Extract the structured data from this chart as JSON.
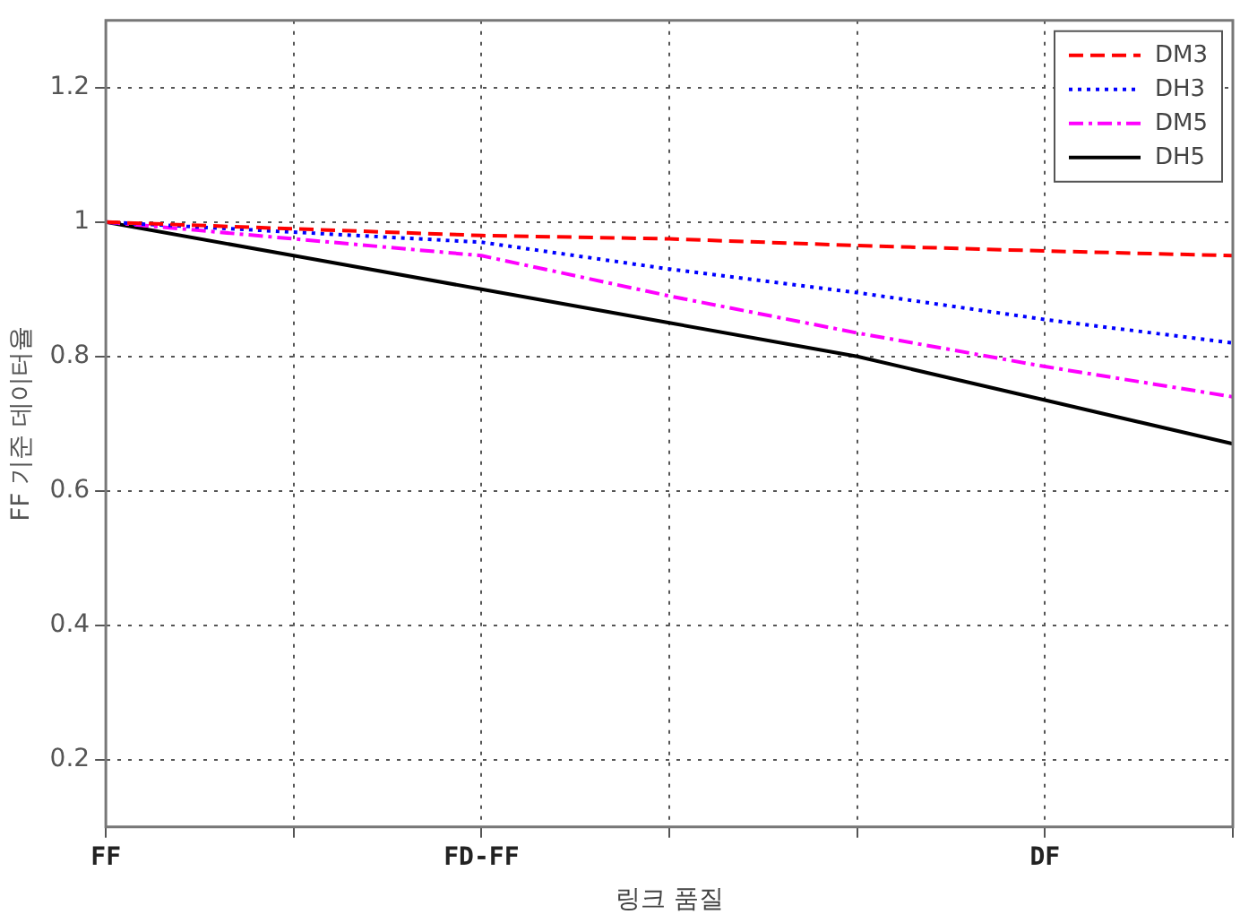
{
  "chart_data": {
    "type": "line",
    "xlabel": "링크 품질",
    "ylabel": "FF 기준 데이터율",
    "categories": [
      "FF",
      null,
      "FD-FF",
      null,
      null,
      "DF",
      null
    ],
    "ylim": [
      0.1,
      1.3
    ],
    "yticks": [
      0.2,
      0.4,
      0.6,
      0.8,
      1,
      1.2
    ],
    "grid": true,
    "legend": "top right",
    "marker": "none",
    "series": [
      {
        "name": "DM3",
        "color": "#ff0000",
        "line_style": "dashed",
        "values": [
          1,
          0.99,
          0.98,
          0.975,
          0.965,
          0.957,
          0.95
        ]
      },
      {
        "name": "DH3",
        "color": "#0000ff",
        "line_style": "dotted",
        "values": [
          1,
          0.985,
          0.97,
          0.93,
          0.895,
          0.855,
          0.82
        ]
      },
      {
        "name": "DM5",
        "color": "#ff00ff",
        "line_style": "dashdot",
        "values": [
          1,
          0.975,
          0.95,
          0.89,
          0.835,
          0.785,
          0.74
        ]
      },
      {
        "name": "DH5",
        "color": "#000000",
        "line_style": "solid",
        "values": [
          1,
          0.95,
          0.9,
          0.85,
          0.8,
          0.735,
          0.67
        ]
      }
    ]
  }
}
